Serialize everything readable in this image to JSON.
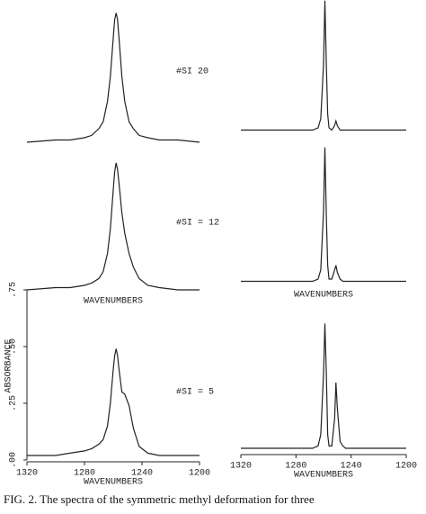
{
  "chart_data": [
    {
      "type": "line",
      "color": "#222222",
      "xlim": [
        1320,
        1200
      ],
      "ylim": [
        0,
        0.75
      ],
      "x": [
        1320,
        1300,
        1290,
        1280,
        1275,
        1270,
        1267,
        1264,
        1262,
        1260,
        1259,
        1258,
        1257,
        1256,
        1254,
        1252,
        1249,
        1246,
        1242,
        1236,
        1228,
        1215,
        1200
      ],
      "values": [
        0.0,
        0.01,
        0.01,
        0.02,
        0.03,
        0.06,
        0.09,
        0.18,
        0.29,
        0.46,
        0.54,
        0.57,
        0.54,
        0.46,
        0.29,
        0.18,
        0.09,
        0.06,
        0.03,
        0.02,
        0.01,
        0.01,
        0.0
      ]
    },
    {
      "type": "line",
      "color": "#222222",
      "xlim": [
        1320,
        1200
      ],
      "ylim": [
        0,
        0.75
      ],
      "xlabel": "WAVENUMBERS",
      "x": [
        1320,
        1300,
        1290,
        1280,
        1275,
        1270,
        1267,
        1264,
        1262,
        1260,
        1259,
        1258,
        1257,
        1256,
        1254,
        1252,
        1249,
        1246,
        1242,
        1236,
        1228,
        1215,
        1200
      ],
      "values": [
        0.0,
        0.01,
        0.01,
        0.02,
        0.03,
        0.05,
        0.08,
        0.16,
        0.27,
        0.44,
        0.52,
        0.56,
        0.53,
        0.47,
        0.34,
        0.25,
        0.16,
        0.1,
        0.05,
        0.02,
        0.01,
        0.0,
        0.0
      ]
    },
    {
      "type": "line",
      "color": "#222222",
      "xlim": [
        1320,
        1200
      ],
      "ylim": [
        0,
        0.75
      ],
      "xlabel": "WAVENUMBERS",
      "ylabel": "ABSORBANCE",
      "xticks": [
        1320,
        1280,
        1240,
        1200
      ],
      "yticks": [
        {
          "value": 0,
          "label": ".00"
        },
        {
          "value": 0.25,
          "label": ".25"
        },
        {
          "value": 0.5,
          "label": ".50"
        },
        {
          "value": 0.75,
          "label": ".75"
        }
      ],
      "x": [
        1320,
        1300,
        1290,
        1280,
        1275,
        1270,
        1267,
        1264,
        1262,
        1260,
        1259,
        1258,
        1257,
        1256,
        1254,
        1252,
        1249,
        1246,
        1242,
        1236,
        1228,
        1215,
        1200
      ],
      "values": [
        0.02,
        0.02,
        0.03,
        0.04,
        0.05,
        0.07,
        0.09,
        0.15,
        0.25,
        0.4,
        0.46,
        0.49,
        0.46,
        0.4,
        0.3,
        0.29,
        0.24,
        0.14,
        0.06,
        0.03,
        0.02,
        0.02,
        0.02
      ]
    },
    {
      "type": "line",
      "color": "#222222",
      "xlim": [
        1320,
        1200
      ],
      "ylim": [
        0,
        0.75
      ],
      "annotation": "#SI   20",
      "x": [
        1320,
        1300,
        1285,
        1275,
        1268,
        1264,
        1262,
        1260,
        1259,
        1258,
        1257,
        1256,
        1254,
        1252,
        1251,
        1250,
        1248,
        1246,
        1244,
        1240,
        1230,
        1215,
        1200
      ],
      "values": [
        0.01,
        0.01,
        0.01,
        0.01,
        0.01,
        0.02,
        0.06,
        0.3,
        0.58,
        0.3,
        0.08,
        0.02,
        0.01,
        0.03,
        0.05,
        0.03,
        0.01,
        0.01,
        0.01,
        0.01,
        0.01,
        0.01,
        0.01
      ]
    },
    {
      "type": "line",
      "color": "#222222",
      "xlim": [
        1320,
        1200
      ],
      "ylim": [
        0,
        0.75
      ],
      "annotation": "#SI = 12",
      "xlabel": "WAVENUMBERS",
      "x": [
        1320,
        1300,
        1285,
        1275,
        1268,
        1264,
        1262,
        1260,
        1259,
        1258,
        1257,
        1256,
        1254,
        1252,
        1251,
        1250,
        1248,
        1246,
        1244,
        1240,
        1230,
        1215,
        1200
      ],
      "values": [
        0.01,
        0.01,
        0.01,
        0.01,
        0.01,
        0.02,
        0.06,
        0.32,
        0.6,
        0.3,
        0.08,
        0.02,
        0.02,
        0.06,
        0.08,
        0.05,
        0.02,
        0.01,
        0.01,
        0.01,
        0.01,
        0.01,
        0.01
      ]
    },
    {
      "type": "line",
      "color": "#222222",
      "xlim": [
        1320,
        1200
      ],
      "ylim": [
        0,
        0.75
      ],
      "annotation": "#SI = 5",
      "xlabel": "WAVENUMBERS",
      "xticks": [
        1320,
        1280,
        1240,
        1200
      ],
      "x": [
        1320,
        1300,
        1285,
        1275,
        1268,
        1264,
        1262,
        1260,
        1259,
        1258,
        1257,
        1256,
        1254,
        1252,
        1251,
        1250,
        1248,
        1246,
        1244,
        1240,
        1230,
        1215,
        1200
      ],
      "values": [
        0.02,
        0.02,
        0.02,
        0.02,
        0.02,
        0.03,
        0.08,
        0.35,
        0.57,
        0.35,
        0.08,
        0.03,
        0.03,
        0.15,
        0.31,
        0.2,
        0.05,
        0.03,
        0.02,
        0.02,
        0.02,
        0.02,
        0.02
      ]
    }
  ],
  "caption": "FIG. 2.  The spectra of the symmetric methyl deformation for three"
}
